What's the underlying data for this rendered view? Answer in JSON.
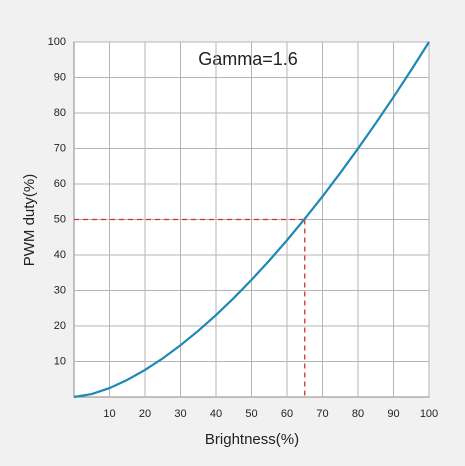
{
  "chart_data": {
    "type": "line",
    "annotation": "Gamma=1.6",
    "xlabel": "Brightness(%)",
    "ylabel": "PWM duty(%)",
    "x": [
      0,
      5,
      10,
      15,
      20,
      25,
      30,
      35,
      40,
      45,
      50,
      55,
      60,
      65,
      70,
      75,
      80,
      85,
      90,
      95,
      100
    ],
    "values": [
      0,
      0.83,
      2.51,
      4.81,
      7.62,
      10.88,
      14.57,
      18.64,
      23.08,
      27.87,
      32.99,
      38.42,
      44.16,
      50.19,
      56.51,
      63.11,
      69.98,
      77.11,
      84.49,
      92.12,
      100
    ],
    "color": "#1f88b5",
    "reference": {
      "x": 65,
      "y": 50,
      "color": "#d12f2a"
    },
    "xlim": [
      0,
      100
    ],
    "ylim": [
      0,
      100
    ],
    "xticks": [
      10,
      20,
      30,
      40,
      50,
      60,
      70,
      80,
      90,
      100
    ],
    "yticks": [
      10,
      20,
      30,
      40,
      50,
      60,
      70,
      80,
      90,
      100
    ],
    "grid": true
  }
}
